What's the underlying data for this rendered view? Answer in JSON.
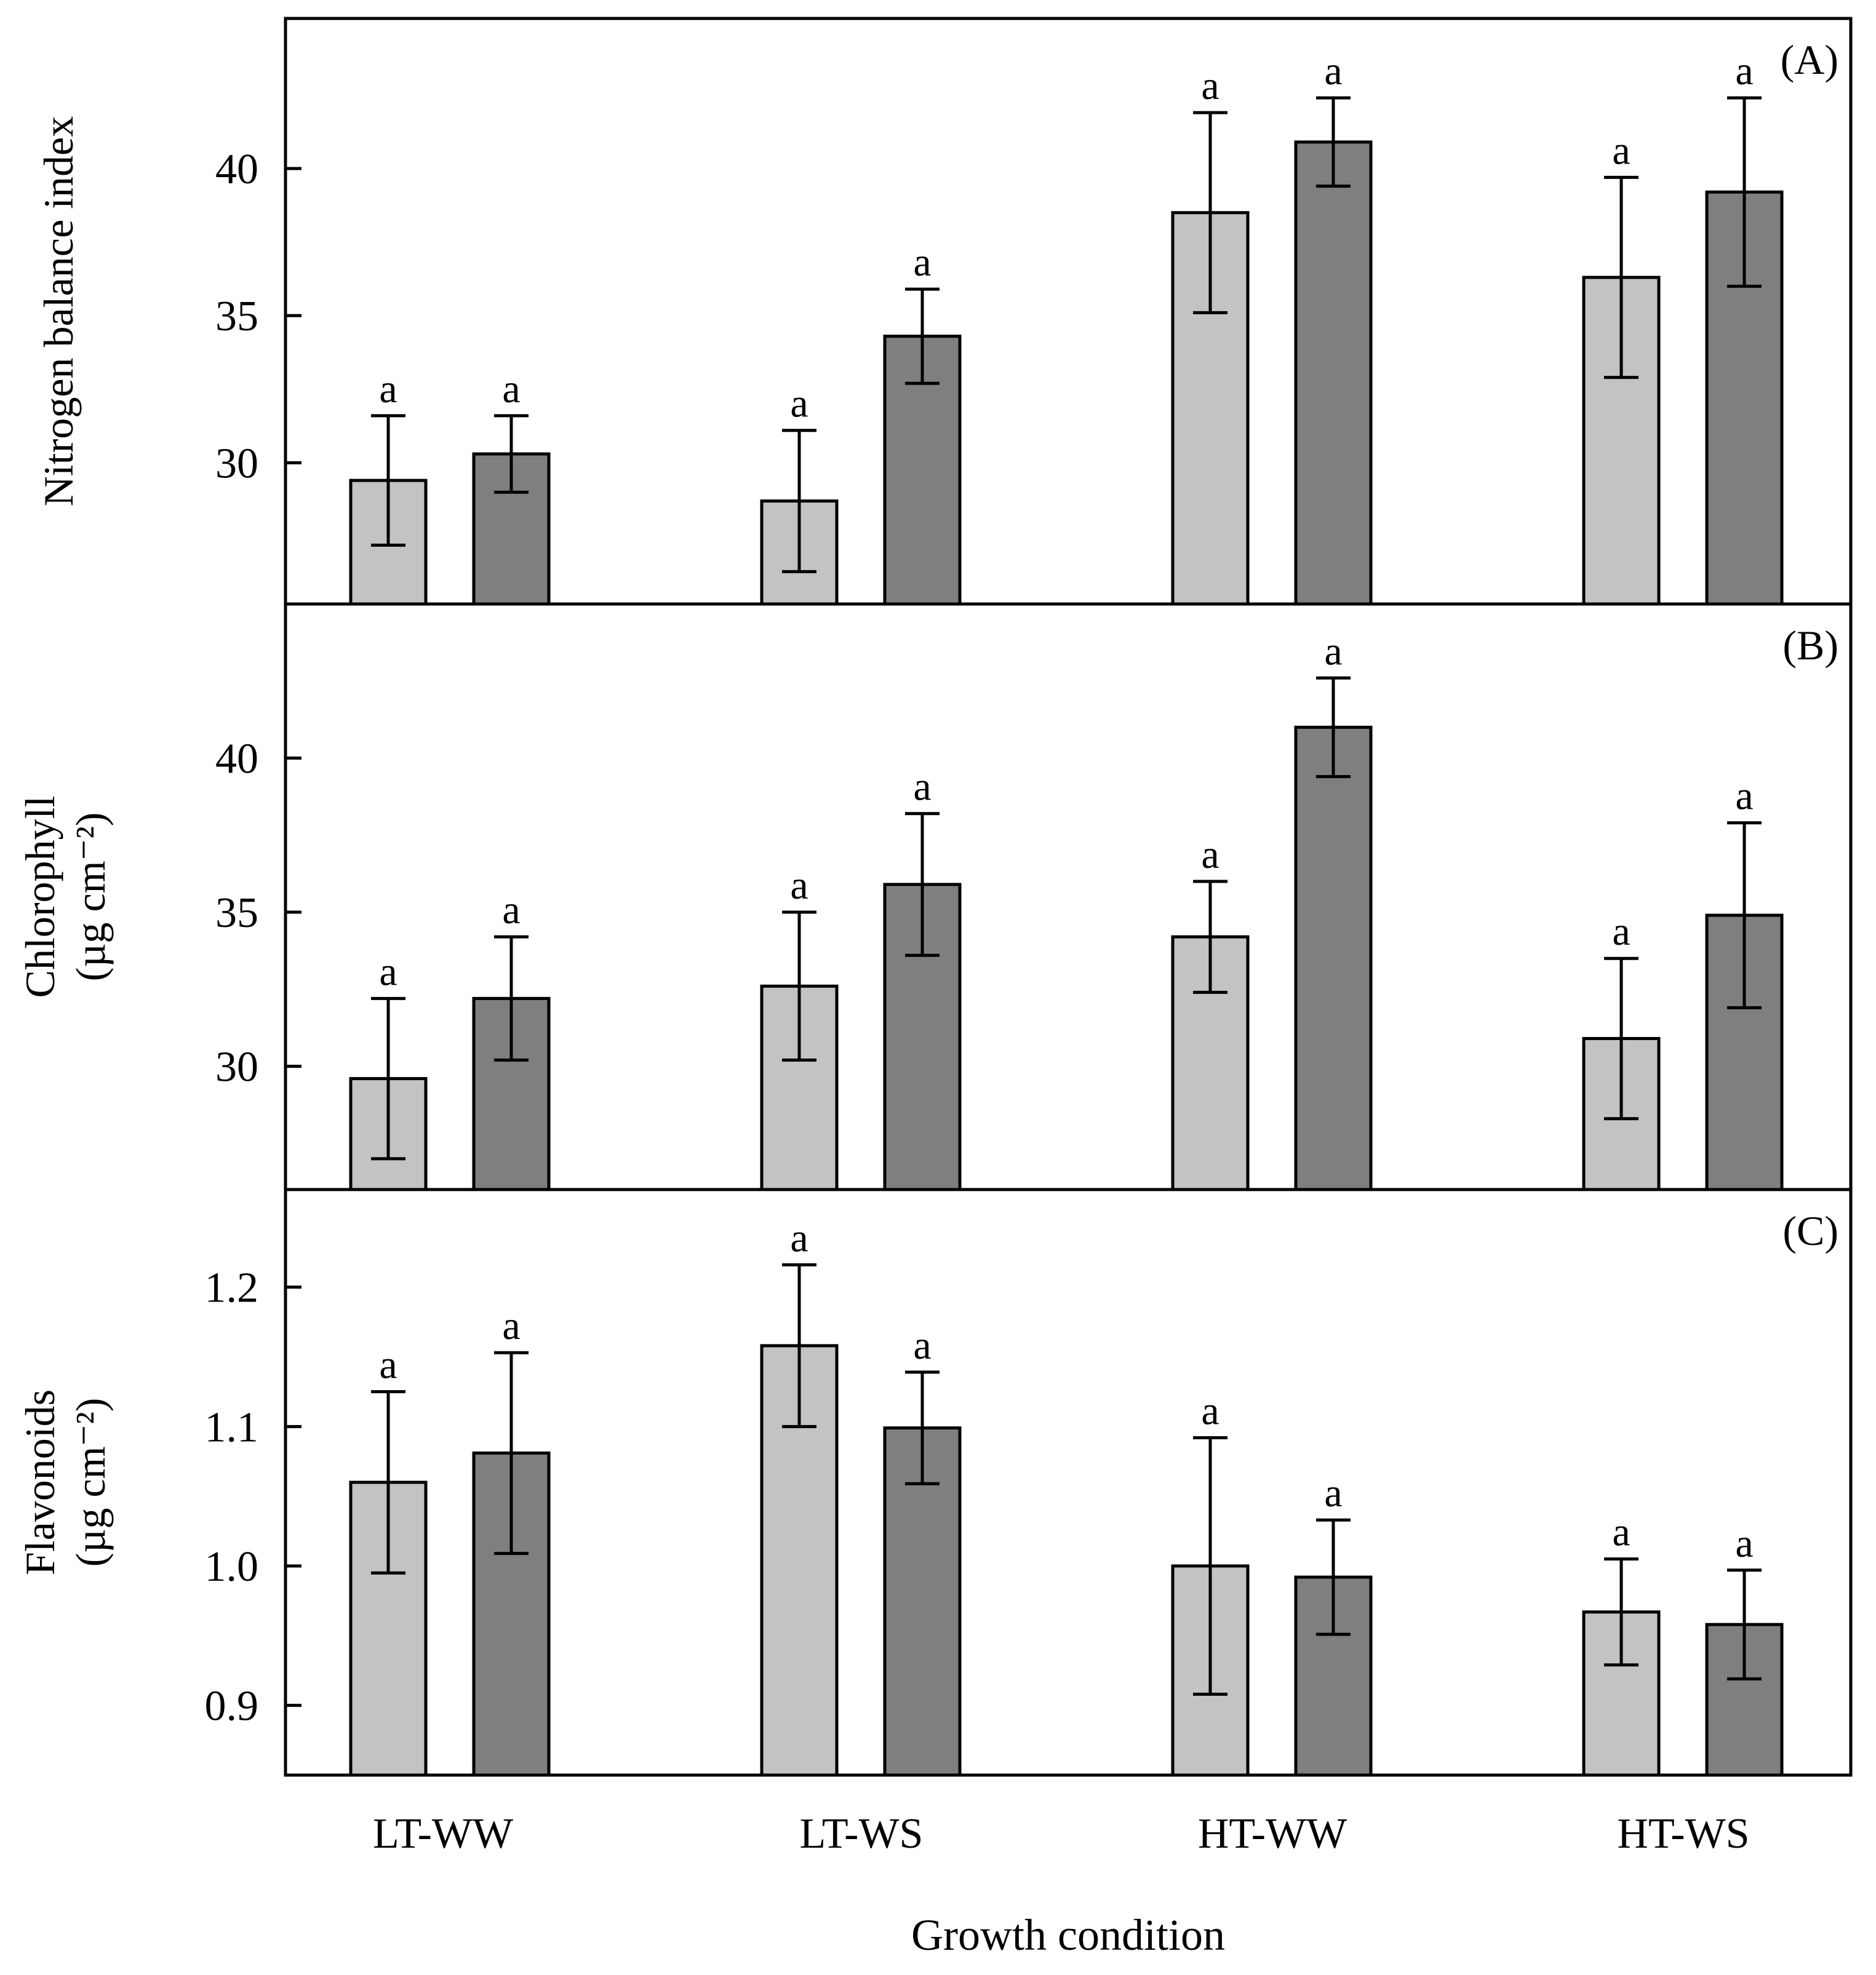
{
  "figure": {
    "x_axis_title": "Growth condition",
    "categories": [
      "LT-WW",
      "LT-WS",
      "HT-WW",
      "HT-WS"
    ],
    "colors": {
      "series_light": "#c3c3c3",
      "series_dark": "#7f7f7f",
      "stroke": "#000000"
    }
  },
  "chart_data": [
    {
      "type": "bar",
      "panel_label": "(A)",
      "ylabel_lines": [
        "Nitrogen balance index"
      ],
      "ylim": [
        25.2,
        45.1
      ],
      "yticks": [
        30,
        35,
        40
      ],
      "ytick_labels": [
        "30",
        "35",
        "40"
      ],
      "categories": [
        "LT-WW",
        "LT-WS",
        "HT-WW",
        "HT-WS"
      ],
      "series": [
        {
          "values": [
            29.4,
            28.7,
            38.5,
            36.3
          ],
          "errors": [
            2.2,
            2.4,
            3.4,
            3.4
          ],
          "sig": [
            "a",
            "a",
            "a",
            "a"
          ]
        },
        {
          "values": [
            30.3,
            34.3,
            40.9,
            39.2
          ],
          "errors": [
            1.3,
            1.6,
            1.5,
            3.2
          ],
          "sig": [
            "a",
            "a",
            "a",
            "a"
          ]
        }
      ],
      "grid": false
    },
    {
      "type": "bar",
      "panel_label": "(B)",
      "ylabel_lines": [
        "Chlorophyll",
        "(µg cm⁻²)"
      ],
      "ylim": [
        26.0,
        45.0
      ],
      "yticks": [
        30,
        35,
        40
      ],
      "ytick_labels": [
        "30",
        "35",
        "40"
      ],
      "categories": [
        "LT-WW",
        "LT-WS",
        "HT-WW",
        "HT-WS"
      ],
      "series": [
        {
          "values": [
            29.6,
            32.6,
            34.2,
            30.9
          ],
          "errors": [
            2.6,
            2.4,
            1.8,
            2.6
          ],
          "sig": [
            "a",
            "a",
            "a",
            "a"
          ]
        },
        {
          "values": [
            32.2,
            35.9,
            41.0,
            34.9
          ],
          "errors": [
            2.0,
            2.3,
            1.6,
            3.0
          ],
          "sig": [
            "a",
            "a",
            "a",
            "a"
          ]
        }
      ],
      "grid": false
    },
    {
      "type": "bar",
      "panel_label": "(C)",
      "ylabel_lines": [
        "Flavonoids",
        "(µg cm⁻²)"
      ],
      "ylim": [
        0.85,
        1.27
      ],
      "yticks": [
        0.9,
        1.0,
        1.1,
        1.2
      ],
      "ytick_labels": [
        "0.9",
        "1.0",
        "1.1",
        "1.2"
      ],
      "categories": [
        "LT-WW",
        "LT-WS",
        "HT-WW",
        "HT-WS"
      ],
      "series": [
        {
          "values": [
            1.06,
            1.158,
            1.0,
            0.967
          ],
          "errors": [
            0.065,
            0.058,
            0.092,
            0.038
          ],
          "sig": [
            "a",
            "a",
            "a",
            "a"
          ]
        },
        {
          "values": [
            1.081,
            1.099,
            0.992,
            0.958
          ],
          "errors": [
            0.072,
            0.04,
            0.041,
            0.039
          ],
          "sig": [
            "a",
            "a",
            "a",
            "a"
          ]
        }
      ],
      "grid": false
    }
  ]
}
